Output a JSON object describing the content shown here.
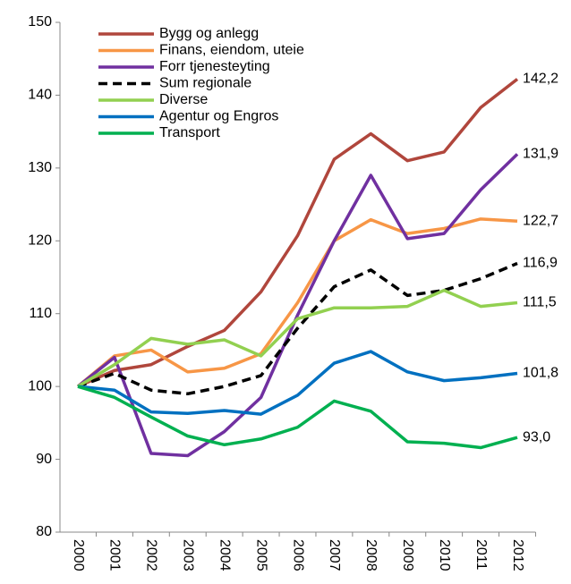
{
  "chart_data": {
    "type": "line",
    "categories": [
      "2000",
      "2001",
      "2002",
      "2003",
      "2004",
      "2005",
      "2006",
      "2007",
      "2008",
      "2009",
      "2010",
      "2011",
      "2012"
    ],
    "ylim": [
      80,
      150
    ],
    "yticks": [
      80,
      90,
      100,
      110,
      120,
      130,
      140,
      150
    ],
    "grid": false,
    "legend": "top-left",
    "series": [
      {
        "name": "Bygg og anlegg",
        "color": "#b0463c",
        "values": [
          100,
          102.2,
          103,
          105.5,
          107.7,
          113,
          120.7,
          131.2,
          134.7,
          131,
          132.2,
          138.3,
          142.2
        ],
        "value_labels": [
          null,
          null,
          null,
          null,
          null,
          null,
          null,
          null,
          null,
          null,
          null,
          null,
          "142,2"
        ]
      },
      {
        "name": "Finans, eiendom, uteie",
        "color": "#f79646",
        "values": [
          100,
          104.2,
          105,
          102,
          102.5,
          104.5,
          111.5,
          120,
          122.9,
          121,
          121.7,
          123,
          122.7
        ],
        "value_labels": [
          null,
          null,
          null,
          null,
          null,
          null,
          null,
          null,
          null,
          null,
          null,
          null,
          "122,7"
        ]
      },
      {
        "name": "Forr tjenesteyting",
        "color": "#7030a0",
        "values": [
          100,
          104,
          90.8,
          90.5,
          93.8,
          98.5,
          109.8,
          120,
          129,
          120.3,
          121,
          127,
          131.9
        ],
        "value_labels": [
          null,
          null,
          null,
          null,
          null,
          null,
          null,
          null,
          null,
          null,
          null,
          null,
          "131,9"
        ]
      },
      {
        "name": "Sum regionale",
        "color": "#000000",
        "dashed": true,
        "values": [
          100,
          101.8,
          99.5,
          99,
          100,
          101.5,
          108,
          113.7,
          116,
          112.5,
          113.2,
          114.8,
          116.9
        ],
        "value_labels": [
          null,
          null,
          null,
          null,
          null,
          null,
          null,
          null,
          null,
          null,
          null,
          null,
          "116,9"
        ]
      },
      {
        "name": "Diverse",
        "color": "#92d050",
        "values": [
          100,
          103,
          106.6,
          105.8,
          106.4,
          104.2,
          109.3,
          110.8,
          110.8,
          111,
          113.2,
          111,
          111.5
        ],
        "value_labels": [
          null,
          null,
          null,
          null,
          null,
          null,
          null,
          null,
          null,
          null,
          null,
          null,
          "111,5"
        ]
      },
      {
        "name": "Agentur og Engros",
        "color": "#0070c0",
        "values": [
          100,
          99.5,
          96.5,
          96.3,
          96.7,
          96.2,
          98.8,
          103.2,
          104.8,
          102,
          100.8,
          101.2,
          101.8
        ],
        "value_labels": [
          null,
          null,
          null,
          null,
          null,
          null,
          null,
          null,
          null,
          null,
          null,
          null,
          "101,8"
        ]
      },
      {
        "name": "Transport",
        "color": "#00b050",
        "values": [
          100,
          98.5,
          95.8,
          93.2,
          92,
          92.8,
          94.4,
          98,
          96.6,
          92.4,
          92.2,
          91.6,
          93.0
        ],
        "value_labels": [
          null,
          null,
          null,
          null,
          null,
          null,
          null,
          null,
          null,
          null,
          null,
          null,
          "93,0"
        ]
      }
    ]
  }
}
